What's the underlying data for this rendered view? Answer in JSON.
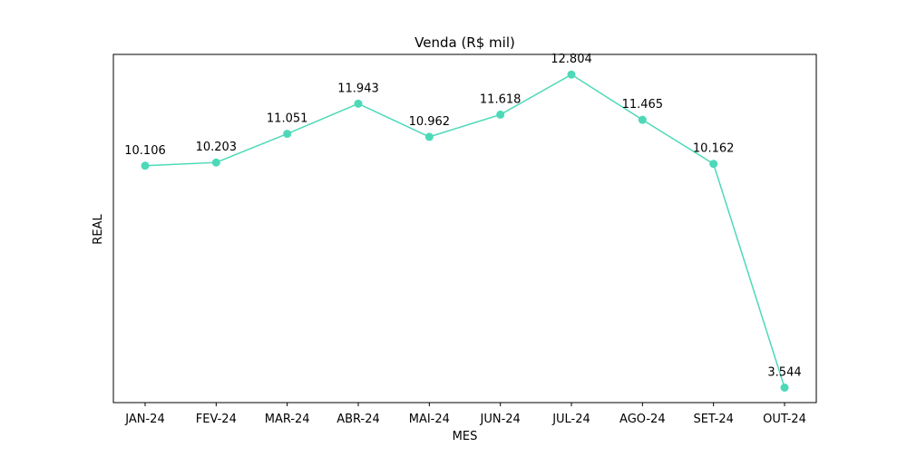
{
  "chart_data": {
    "type": "line",
    "title": "Venda (R$ mil)",
    "xlabel": "MES",
    "ylabel": "REAL",
    "categories": [
      "JAN-24",
      "FEV-24",
      "MAR-24",
      "ABR-24",
      "MAI-24",
      "JUN-24",
      "JUL-24",
      "AGO-24",
      "SET-24",
      "OUT-24"
    ],
    "series": [
      {
        "values": [
          10.106,
          10.203,
          11.051,
          11.943,
          10.962,
          11.618,
          12.804,
          11.465,
          10.162,
          3.544
        ],
        "data_labels": [
          "10.106",
          "10.203",
          "11.051",
          "11.943",
          "10.962",
          "11.618",
          "12.804",
          "11.465",
          "10.162",
          "3.544"
        ],
        "color": "#4dd9b8"
      }
    ],
    "ylim": [
      3.1,
      13.4
    ],
    "y_ticks_visible": false,
    "grid": false,
    "legend": "none",
    "marker": "circle"
  }
}
